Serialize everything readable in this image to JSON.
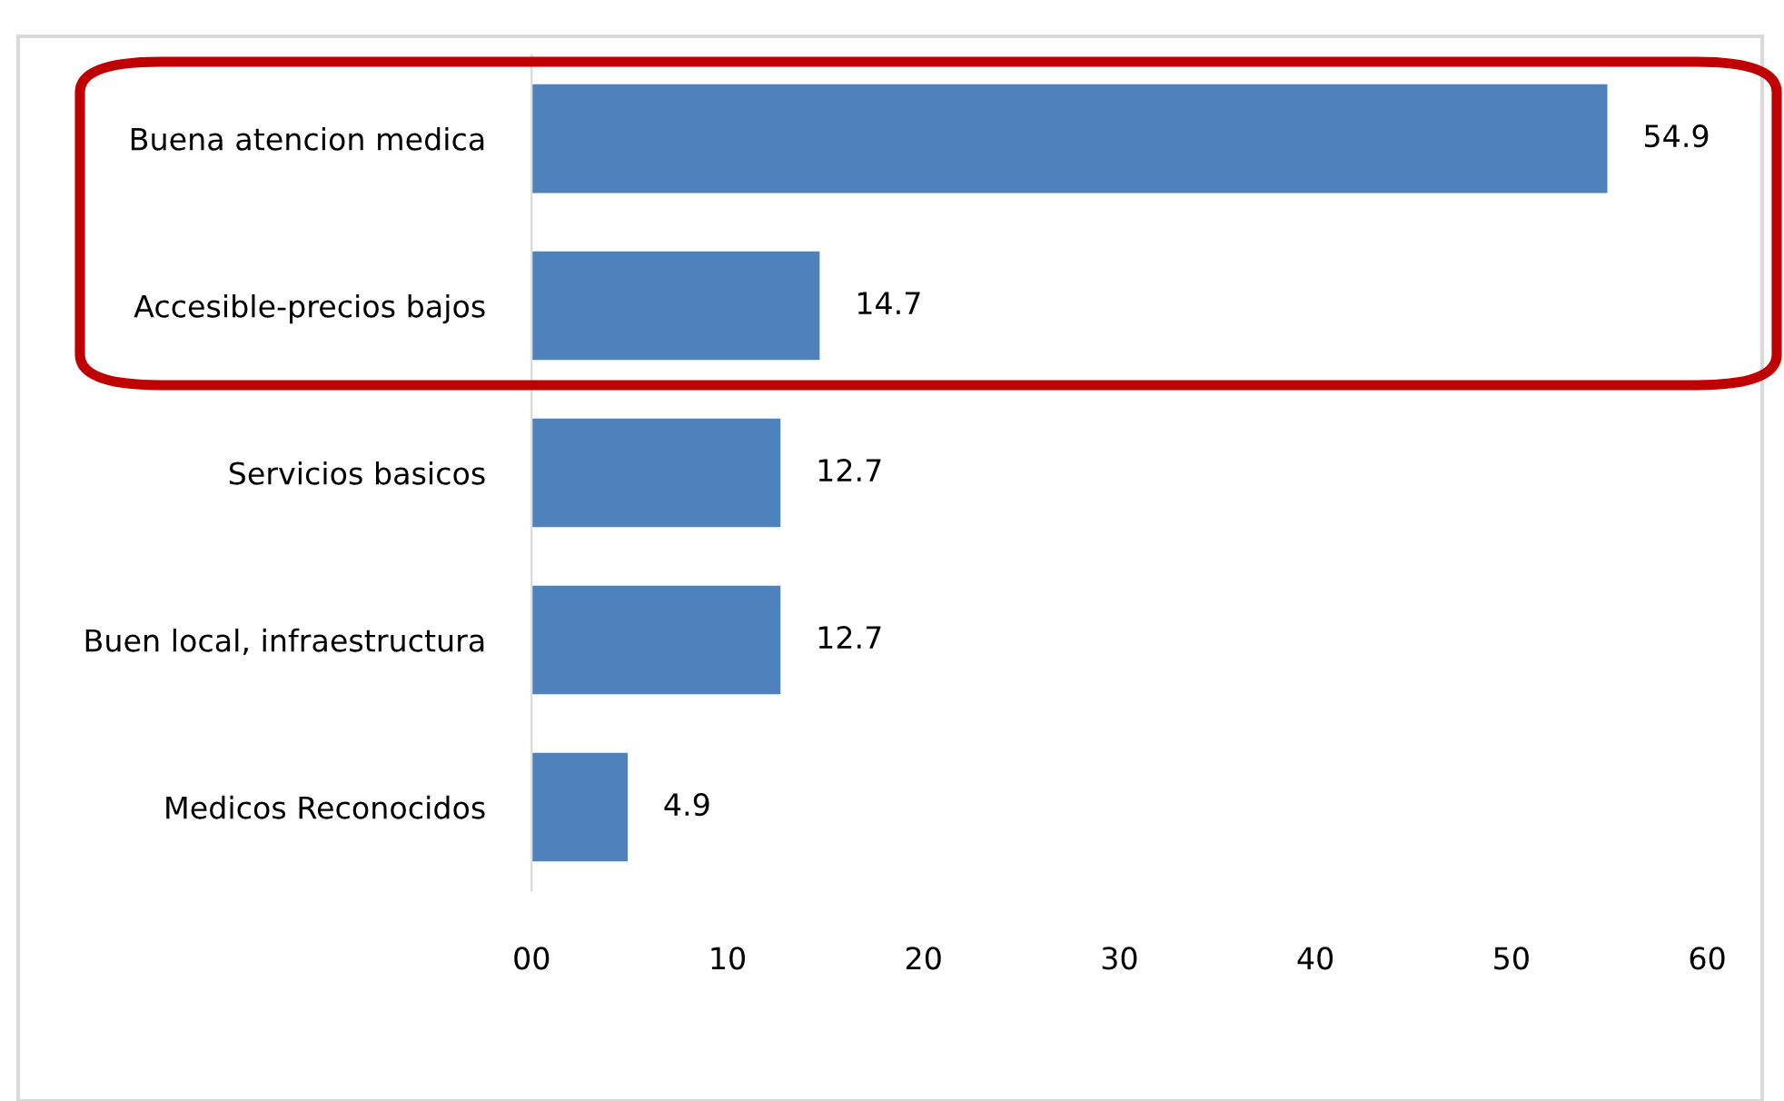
{
  "chart_data": {
    "type": "bar",
    "orientation": "horizontal",
    "categories": [
      "Buena atencion medica",
      "Accesible-precios bajos",
      "Servicios basicos",
      "Buen local, infraestructura",
      "Medicos Reconocidos"
    ],
    "values": [
      54.9,
      14.7,
      12.7,
      12.7,
      4.9
    ],
    "color": "#4f81bd",
    "xlim": [
      0,
      60
    ],
    "xticks": [
      {
        "value": 0,
        "label": "00"
      },
      10,
      20,
      30,
      40,
      50,
      60
    ],
    "grid": false,
    "legend": false,
    "data_labels": true
  }
}
